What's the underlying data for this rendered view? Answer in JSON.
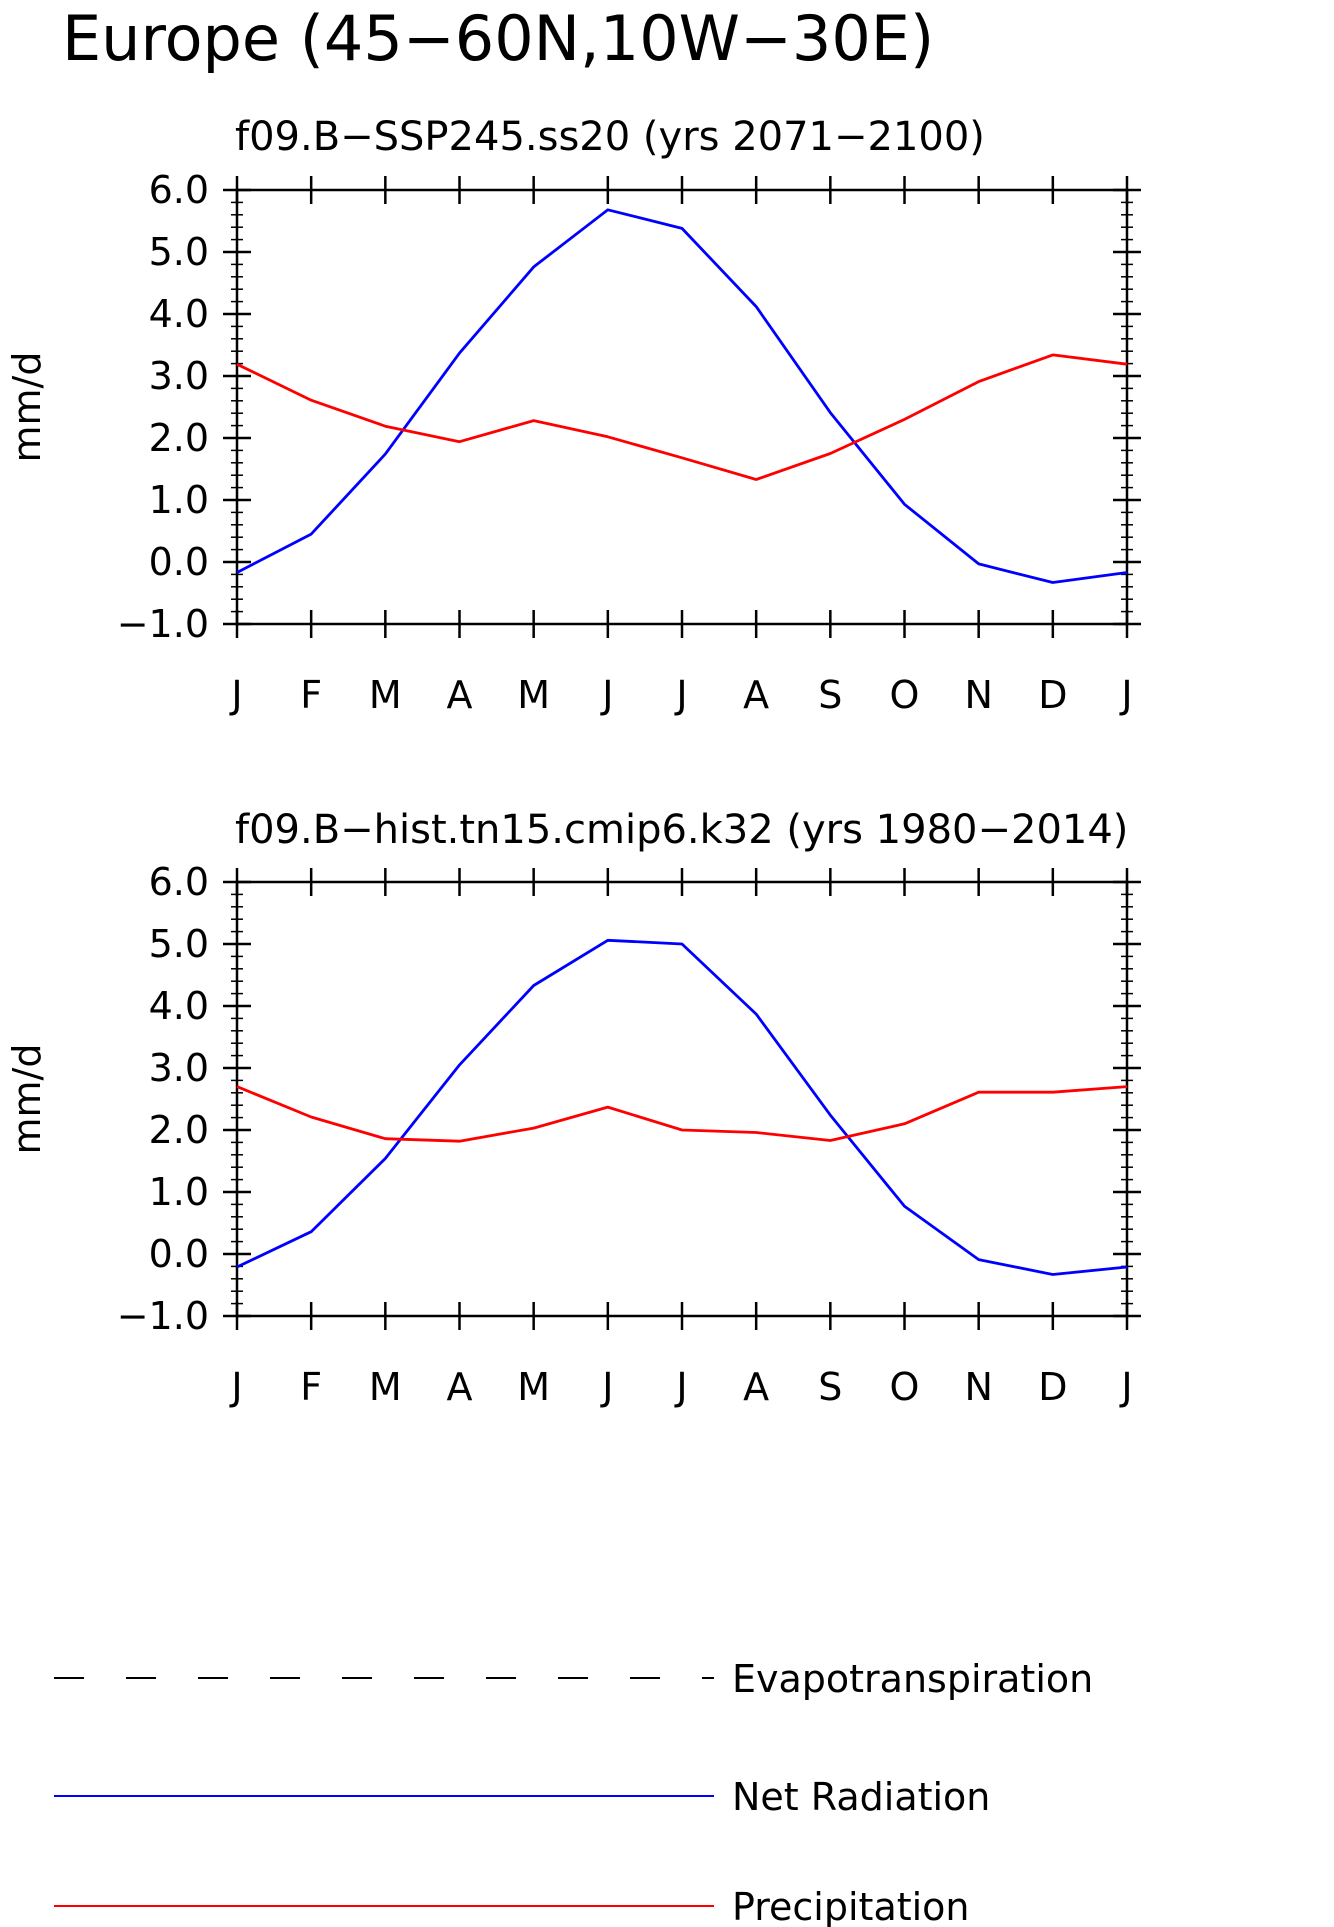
{
  "figure": {
    "title": "Europe (45−60N,10W−30E)"
  },
  "colors": {
    "net_radiation": "#0000ff",
    "precipitation": "#ff0000",
    "evapotranspiration": "#000000",
    "axes": "#000000"
  },
  "chart_data": [
    {
      "type": "line",
      "title": "f09.B−SSP245.ss20 (yrs 2071−2100)",
      "xlabel": "",
      "ylabel": "mm/d",
      "ylim": [
        -1.0,
        6.0
      ],
      "yticks": [
        -1.0,
        0.0,
        1.0,
        2.0,
        3.0,
        4.0,
        5.0,
        6.0
      ],
      "ytick_labels": [
        "−1.0",
        "0.0",
        "1.0",
        "2.0",
        "3.0",
        "4.0",
        "5.0",
        "6.0"
      ],
      "categories": [
        "J",
        "F",
        "M",
        "A",
        "M",
        "J",
        "J",
        "A",
        "S",
        "O",
        "N",
        "D",
        "J"
      ],
      "grid": false,
      "series": [
        {
          "name": "Net Radiation",
          "color": "#0000ff",
          "values": [
            -0.17,
            0.45,
            1.74,
            3.37,
            4.76,
            5.68,
            5.38,
            4.12,
            2.41,
            0.93,
            -0.03,
            -0.33,
            -0.17
          ]
        },
        {
          "name": "Precipitation",
          "color": "#ff0000",
          "values": [
            3.19,
            2.61,
            2.19,
            1.94,
            2.28,
            2.02,
            1.68,
            1.33,
            1.75,
            2.3,
            2.91,
            3.34,
            3.19
          ]
        }
      ]
    },
    {
      "type": "line",
      "title": "f09.B−hist.tn15.cmip6.k32 (yrs 1980−2014)",
      "xlabel": "",
      "ylabel": "mm/d",
      "ylim": [
        -1.0,
        6.0
      ],
      "yticks": [
        -1.0,
        0.0,
        1.0,
        2.0,
        3.0,
        4.0,
        5.0,
        6.0
      ],
      "ytick_labels": [
        "−1.0",
        "0.0",
        "1.0",
        "2.0",
        "3.0",
        "4.0",
        "5.0",
        "6.0"
      ],
      "categories": [
        "J",
        "F",
        "M",
        "A",
        "M",
        "J",
        "J",
        "A",
        "S",
        "O",
        "N",
        "D",
        "J"
      ],
      "grid": false,
      "series": [
        {
          "name": "Net Radiation",
          "color": "#0000ff",
          "values": [
            -0.21,
            0.36,
            1.54,
            3.05,
            4.33,
            5.06,
            5.0,
            3.87,
            2.24,
            0.77,
            -0.09,
            -0.33,
            -0.21
          ]
        },
        {
          "name": "Precipitation",
          "color": "#ff0000",
          "values": [
            2.7,
            2.21,
            1.86,
            1.82,
            2.03,
            2.37,
            2.0,
            1.96,
            1.83,
            2.1,
            2.61,
            2.61,
            2.7
          ]
        }
      ]
    }
  ],
  "legend": {
    "placement": "bottom",
    "items": [
      {
        "name": "legend-evapotranspiration",
        "label": "Evapotranspiration",
        "color": "#000000",
        "style": "dashed"
      },
      {
        "name": "legend-net-radiation",
        "label": "Net Radiation",
        "color": "#0000ff",
        "style": "solid"
      },
      {
        "name": "legend-precipitation",
        "label": "Precipitation",
        "color": "#ff0000",
        "style": "solid"
      }
    ]
  }
}
